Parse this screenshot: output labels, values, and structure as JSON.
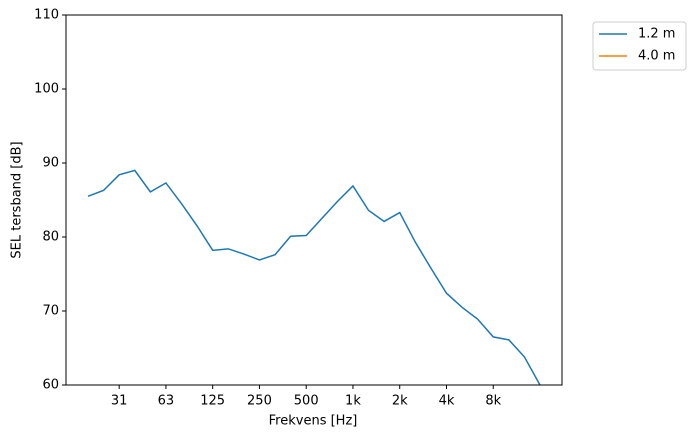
{
  "chart_data": {
    "type": "line",
    "x_label": "Frekvens [Hz]",
    "y_label": "SEL tersband [dB]",
    "categories": [
      null,
      null,
      "31",
      null,
      null,
      "63",
      null,
      null,
      "125",
      null,
      null,
      "250",
      null,
      null,
      "500",
      null,
      null,
      "1k",
      null,
      null,
      "2k",
      null,
      null,
      "4k",
      null,
      null,
      "8k",
      null,
      null,
      null
    ],
    "series": [
      {
        "name": "1.2 m",
        "color": "#1f77b4",
        "values": [
          85.5,
          86.3,
          88.4,
          89.0,
          86.1,
          87.3,
          84.5,
          81.5,
          78.2,
          78.4,
          77.7,
          76.9,
          77.6,
          80.1,
          80.2,
          82.5,
          84.8,
          86.9,
          83.6,
          82.1,
          83.3,
          79.3,
          75.8,
          72.4,
          70.5,
          68.9,
          66.5,
          66.1,
          63.8,
          60.0
        ]
      },
      {
        "name": "4.0 m",
        "color": "#ff7f0e",
        "values": [
          null,
          null,
          null,
          null,
          null,
          null,
          null,
          null,
          null,
          null,
          null,
          null,
          null,
          null,
          null,
          null,
          null,
          null,
          null,
          null,
          null,
          null,
          null,
          null,
          null,
          null,
          null,
          null,
          null,
          null
        ]
      }
    ],
    "ylim": [
      60,
      110
    ],
    "yticks": [
      60,
      70,
      80,
      90,
      100,
      110
    ],
    "grid": false,
    "legend": "upper right outside"
  }
}
